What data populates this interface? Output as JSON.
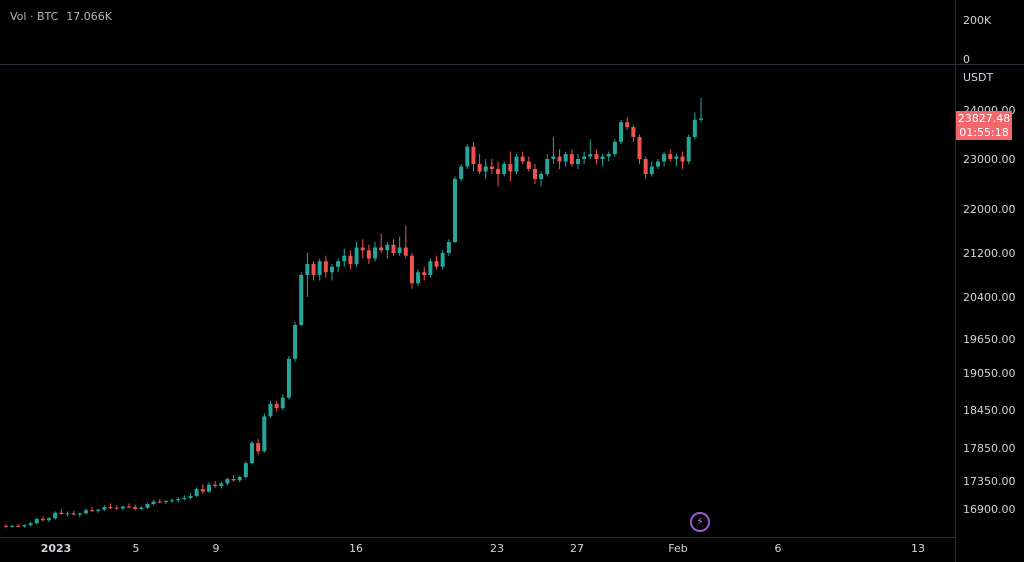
{
  "volume": {
    "label": "Vol · BTC",
    "value": "17.066K",
    "axis_ticks": [
      "200K",
      "0"
    ]
  },
  "price_axis": {
    "unit": "USDT",
    "ticks": [
      "24000.00",
      "23000.00",
      "22000.00",
      "21200.00",
      "20400.00",
      "19650.00",
      "19050.00",
      "18450.00",
      "17850.00",
      "17350.00",
      "16900.00"
    ]
  },
  "time_axis": {
    "ticks": [
      "2023",
      "5",
      "9",
      "16",
      "23",
      "27",
      "Feb",
      "6",
      "13"
    ]
  },
  "price_tag": {
    "price": "23827.48",
    "countdown": "01:55:18"
  },
  "colors": {
    "up": "#26a69a",
    "down": "#ef5350",
    "price_tag": "#f2676b",
    "events_icon": "#9b59d0"
  },
  "events_icon": {
    "icon": "lightning-icon",
    "glyph": "⚡"
  },
  "chart_data": {
    "type": "candlestick",
    "unit": "USDT",
    "x_axis_ticks": [
      "2023",
      "5",
      "9",
      "16",
      "23",
      "27",
      "Feb",
      "6",
      "13"
    ],
    "y_axis_ticks": [
      24000,
      23000,
      22000,
      21200,
      20400,
      19650,
      19050,
      18450,
      17850,
      17350,
      16900
    ],
    "last_price": 23827.48,
    "ohlc": [
      [
        16630,
        16650,
        16590,
        16615
      ],
      [
        16615,
        16640,
        16600,
        16630
      ],
      [
        16630,
        16660,
        16610,
        16620
      ],
      [
        16620,
        16650,
        16600,
        16640
      ],
      [
        16640,
        16690,
        16620,
        16670
      ],
      [
        16670,
        16760,
        16650,
        16740
      ],
      [
        16740,
        16780,
        16700,
        16720
      ],
      [
        16720,
        16770,
        16690,
        16750
      ],
      [
        16750,
        16860,
        16730,
        16840
      ],
      [
        16840,
        16900,
        16800,
        16820
      ],
      [
        16820,
        16860,
        16780,
        16830
      ],
      [
        16830,
        16870,
        16800,
        16810
      ],
      [
        16810,
        16840,
        16770,
        16830
      ],
      [
        16830,
        16900,
        16810,
        16880
      ],
      [
        16880,
        16930,
        16850,
        16870
      ],
      [
        16870,
        16900,
        16840,
        16890
      ],
      [
        16890,
        16960,
        16870,
        16930
      ],
      [
        16930,
        16990,
        16900,
        16920
      ],
      [
        16920,
        16960,
        16890,
        16910
      ],
      [
        16910,
        16950,
        16880,
        16940
      ],
      [
        16940,
        16990,
        16910,
        16930
      ],
      [
        16930,
        16970,
        16880,
        16900
      ],
      [
        16900,
        16950,
        16880,
        16920
      ],
      [
        16920,
        17000,
        16900,
        16980
      ],
      [
        16980,
        17050,
        16960,
        17020
      ],
      [
        17020,
        17060,
        16990,
        17010
      ],
      [
        17010,
        17040,
        16980,
        17030
      ],
      [
        17030,
        17070,
        17000,
        17040
      ],
      [
        17040,
        17090,
        17010,
        17060
      ],
      [
        17060,
        17120,
        17040,
        17080
      ],
      [
        17080,
        17150,
        17050,
        17110
      ],
      [
        17110,
        17250,
        17090,
        17220
      ],
      [
        17220,
        17300,
        17150,
        17180
      ],
      [
        17180,
        17330,
        17160,
        17290
      ],
      [
        17290,
        17350,
        17240,
        17270
      ],
      [
        17270,
        17340,
        17230,
        17310
      ],
      [
        17310,
        17400,
        17280,
        17380
      ],
      [
        17380,
        17440,
        17340,
        17360
      ],
      [
        17360,
        17430,
        17330,
        17410
      ],
      [
        17410,
        17650,
        17390,
        17620
      ],
      [
        17620,
        17960,
        17600,
        17930
      ],
      [
        17930,
        17990,
        17750,
        17800
      ],
      [
        17800,
        18400,
        17780,
        18350
      ],
      [
        18350,
        18600,
        18320,
        18550
      ],
      [
        18550,
        18600,
        18420,
        18480
      ],
      [
        18480,
        18700,
        18450,
        18650
      ],
      [
        18650,
        19350,
        18620,
        19300
      ],
      [
        19300,
        19950,
        19250,
        19900
      ],
      [
        19900,
        20850,
        19880,
        20800
      ],
      [
        20800,
        21200,
        20400,
        21000
      ],
      [
        21000,
        21050,
        20700,
        20800
      ],
      [
        20800,
        21100,
        20700,
        21050
      ],
      [
        21050,
        21150,
        20750,
        20850
      ],
      [
        20850,
        21000,
        20700,
        20950
      ],
      [
        20950,
        21100,
        20850,
        21050
      ],
      [
        21050,
        21280,
        20950,
        21150
      ],
      [
        21150,
        21250,
        20900,
        21000
      ],
      [
        21000,
        21400,
        20950,
        21300
      ],
      [
        21300,
        21450,
        21100,
        21250
      ],
      [
        21250,
        21350,
        21000,
        21100
      ],
      [
        21100,
        21400,
        21050,
        21300
      ],
      [
        21300,
        21550,
        21200,
        21250
      ],
      [
        21250,
        21400,
        21100,
        21350
      ],
      [
        21350,
        21450,
        21150,
        21200
      ],
      [
        21200,
        21500,
        21150,
        21300
      ],
      [
        21300,
        21700,
        21100,
        21150
      ],
      [
        21150,
        21200,
        20550,
        20650
      ],
      [
        20650,
        20900,
        20600,
        20850
      ],
      [
        20850,
        20950,
        20700,
        20800
      ],
      [
        20800,
        21100,
        20750,
        21050
      ],
      [
        21050,
        21150,
        20900,
        20950
      ],
      [
        20950,
        21250,
        20900,
        21200
      ],
      [
        21200,
        21450,
        21150,
        21400
      ],
      [
        21400,
        22650,
        21380,
        22600
      ],
      [
        22600,
        22900,
        22550,
        22850
      ],
      [
        22850,
        23300,
        22800,
        23250
      ],
      [
        23250,
        23350,
        22750,
        22900
      ],
      [
        22900,
        23100,
        22700,
        22750
      ],
      [
        22750,
        23000,
        22600,
        22850
      ],
      [
        22850,
        23000,
        22700,
        22800
      ],
      [
        22800,
        22950,
        22450,
        22700
      ],
      [
        22700,
        22950,
        22650,
        22900
      ],
      [
        22900,
        23150,
        22550,
        22750
      ],
      [
        22750,
        23100,
        22700,
        23050
      ],
      [
        23050,
        23150,
        22900,
        22950
      ],
      [
        22950,
        23050,
        22750,
        22800
      ],
      [
        22800,
        22900,
        22500,
        22600
      ],
      [
        22600,
        22750,
        22450,
        22700
      ],
      [
        22700,
        23100,
        22650,
        23000
      ],
      [
        23000,
        23450,
        22900,
        23050
      ],
      [
        23050,
        23200,
        22800,
        22950
      ],
      [
        22950,
        23150,
        22850,
        23100
      ],
      [
        23100,
        23200,
        22850,
        22900
      ],
      [
        22900,
        23100,
        22800,
        23000
      ],
      [
        23000,
        23150,
        22900,
        23050
      ],
      [
        23050,
        23400,
        23000,
        23100
      ],
      [
        23100,
        23200,
        22900,
        23000
      ],
      [
        23000,
        23100,
        22850,
        23050
      ],
      [
        23050,
        23150,
        22950,
        23100
      ],
      [
        23100,
        23400,
        23050,
        23350
      ],
      [
        23350,
        23800,
        23300,
        23750
      ],
      [
        23750,
        23850,
        23600,
        23650
      ],
      [
        23650,
        23700,
        23350,
        23450
      ],
      [
        23450,
        23500,
        22900,
        23000
      ],
      [
        23000,
        23050,
        22600,
        22700
      ],
      [
        22700,
        22950,
        22650,
        22850
      ],
      [
        22850,
        23000,
        22800,
        22950
      ],
      [
        22950,
        23150,
        22850,
        23100
      ],
      [
        23100,
        23200,
        22950,
        23000
      ],
      [
        23000,
        23100,
        22850,
        23050
      ],
      [
        23050,
        23150,
        22800,
        22950
      ],
      [
        22950,
        23500,
        22900,
        23450
      ],
      [
        23450,
        23950,
        23400,
        23800
      ],
      [
        23800,
        24250,
        23750,
        23827.48
      ]
    ]
  }
}
